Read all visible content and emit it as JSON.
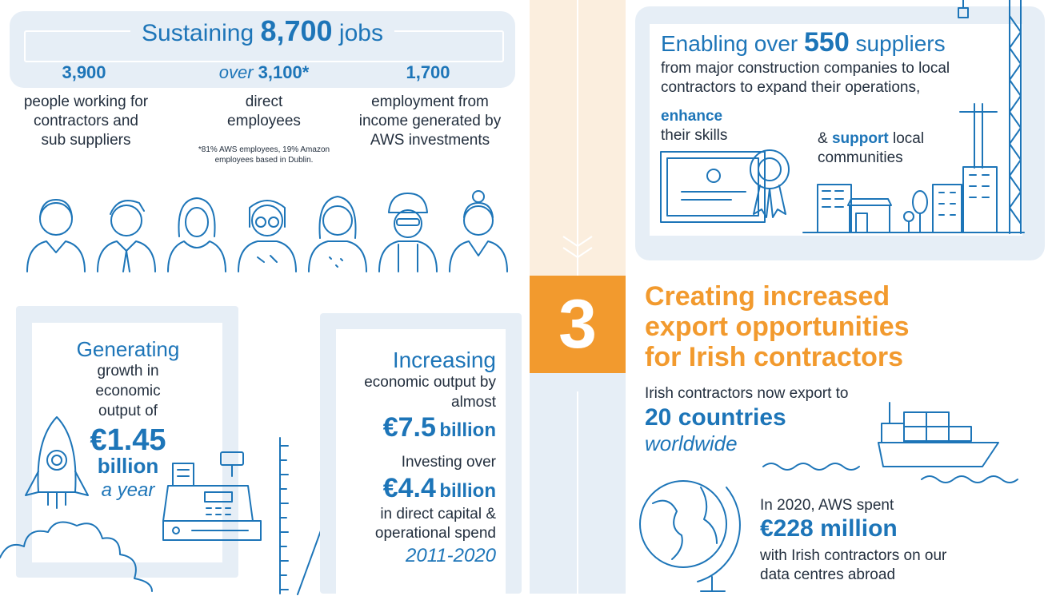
{
  "jobs": {
    "heading_prefix": "Sustaining",
    "heading_number": "8,700",
    "heading_suffix": "jobs",
    "col1_number": "3,900",
    "col1_text": "people working for contractors and sub suppliers",
    "col2_prefix": "over",
    "col2_number": "3,100*",
    "col2_text": "direct employees",
    "col2_footnote": "*81% AWS employees, 19% Amazon employees based in Dublin.",
    "col3_number": "1,700",
    "col3_text": "employment from income generated by AWS investments"
  },
  "suppliers": {
    "heading_prefix": "Enabling over",
    "heading_number": "550",
    "heading_suffix": "suppliers",
    "body": "from major construction companies to local contractors to expand their operations,",
    "enhance_word": "enhance",
    "enhance_text": "their skills",
    "support_prefix": "&",
    "support_word": "support",
    "support_text": "local communities"
  },
  "growth": {
    "heading": "Generating",
    "text": "growth in economic output of",
    "amount": "€1.45",
    "unit": "billion",
    "period": "a year"
  },
  "output": {
    "heading": "Increasing",
    "text": "economic output by almost",
    "amount": "€7.5",
    "unit": "billion",
    "invest_text": "Investing over",
    "invest_amount": "€4.4",
    "invest_unit": "billion",
    "invest_desc": "in direct capital & operational spend",
    "invest_period": "2011-2020"
  },
  "section3": {
    "number": "3",
    "title_line1": "Creating increased",
    "title_line2": "export opportunities",
    "title_line3": "for Irish contractors",
    "export_text": "Irish contractors now export to",
    "export_number": "20 countries",
    "export_suffix": "worldwide",
    "spend_text": "In 2020, AWS spent",
    "spend_amount": "€228 million",
    "spend_desc": "with Irish contractors on our data centres abroad"
  },
  "colors": {
    "blue": "#1d75b8",
    "orange": "#f29a2e",
    "panel": "#e6eef6",
    "dark": "#232f3e"
  },
  "icons": [
    "person-icon",
    "rocket-icon",
    "cash-register-icon",
    "certificate-icon",
    "buildings-icon",
    "crane-icon",
    "ship-icon",
    "globe-icon",
    "chevron-down-icon"
  ]
}
